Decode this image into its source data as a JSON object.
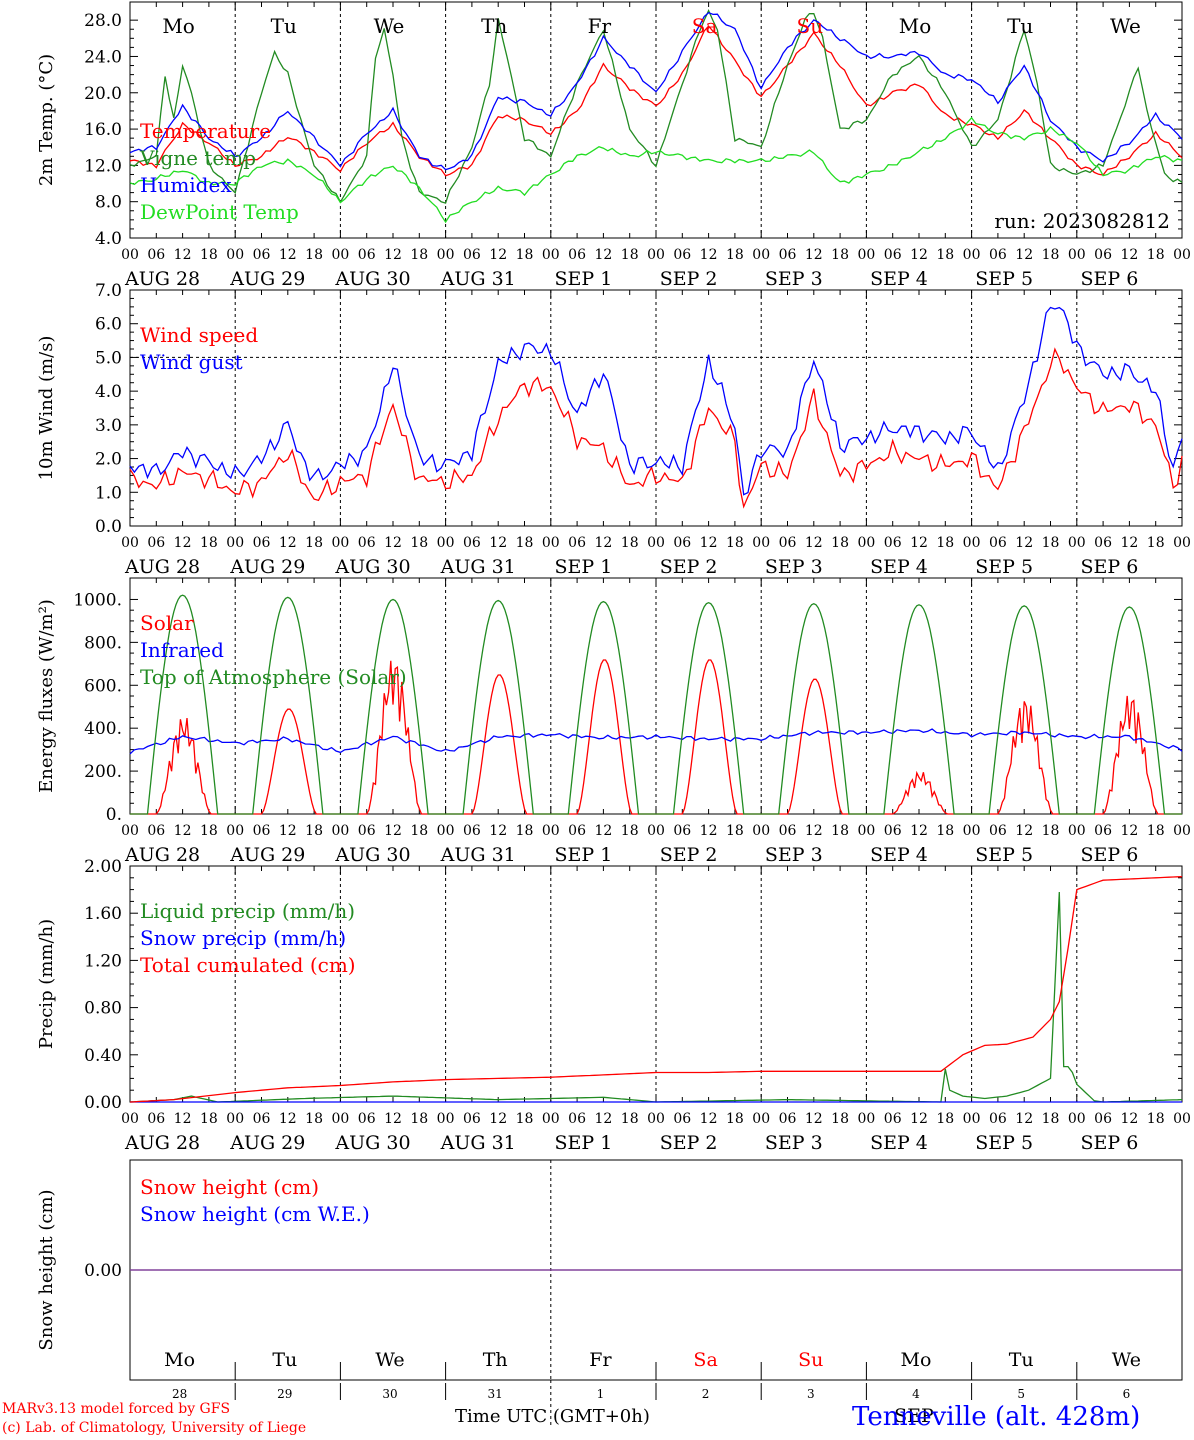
{
  "run_label": "run: 2023082812",
  "location": "Tenneville (alt. 428m)",
  "footer_line1": "MARv3.13 model forced by GFS",
  "footer_line2": "(c) Lab. of Climatology, University of Liege",
  "xlabel": "Time UTC (GMT+0h)",
  "hour_ticks": [
    "00",
    "06",
    "12",
    "18"
  ],
  "days": [
    {
      "dow": "Mo",
      "date": "AUG 28",
      "num": "28",
      "weekend": false
    },
    {
      "dow": "Tu",
      "date": "AUG 29",
      "num": "29",
      "weekend": false
    },
    {
      "dow": "We",
      "date": "AUG 30",
      "num": "30",
      "weekend": false
    },
    {
      "dow": "Th",
      "date": "AUG 31",
      "num": "31",
      "weekend": false
    },
    {
      "dow": "Fr",
      "date": "SEP  1",
      "num": "1",
      "weekend": false
    },
    {
      "dow": "Sa",
      "date": "SEP  2",
      "num": "2",
      "weekend": true
    },
    {
      "dow": "Su",
      "date": "SEP  3",
      "num": "3",
      "weekend": true
    },
    {
      "dow": "Mo",
      "date": "SEP  4",
      "num": "4",
      "weekend": false
    },
    {
      "dow": "Tu",
      "date": "SEP  5",
      "num": "5",
      "weekend": false
    },
    {
      "dow": "We",
      "date": "SEP  6",
      "num": "6",
      "weekend": false
    }
  ],
  "bottom_month": "SEP",
  "colors": {
    "red": "#ff0000",
    "green": "#228b22",
    "blue": "#0000ff",
    "light_green": "#22dd22",
    "purple": "#7d3c98"
  },
  "chart_data": [
    {
      "id": "temp",
      "type": "line",
      "ylabel": "2m Temp. (°C)",
      "ylim": [
        4,
        30
      ],
      "yticks": [
        "4.0",
        "8.0",
        "12.0",
        "16.0",
        "20.0",
        "24.0",
        "28.0"
      ],
      "ytick_values": [
        4,
        8,
        12,
        16,
        20,
        24,
        28
      ],
      "x_units": "hours since 2023-08-28 00 UTC",
      "series": [
        {
          "name": "Temperature",
          "color": "#ff0000",
          "x": [
            0,
            6,
            12,
            18,
            24,
            30,
            36,
            42,
            48,
            54,
            60,
            66,
            72,
            78,
            84,
            90,
            96,
            102,
            108,
            114,
            120,
            126,
            132,
            138,
            144,
            150,
            156,
            162,
            168,
            174,
            180,
            186,
            192,
            198,
            204,
            210,
            216,
            222,
            228,
            234,
            240
          ],
          "values": [
            12.5,
            12,
            16.5,
            14.5,
            12,
            13,
            15.2,
            13.5,
            11.5,
            14.5,
            16.5,
            13,
            11,
            12,
            17.5,
            17,
            15.5,
            18,
            23,
            20.5,
            18.5,
            22,
            27.5,
            23.5,
            19.5,
            23,
            26.5,
            23,
            18.5,
            20,
            21,
            17.5,
            16.5,
            15,
            18,
            15,
            12,
            11,
            13,
            15.5,
            13
          ]
        },
        {
          "name": "Vigne temp",
          "color": "#228b22",
          "x": [
            0,
            6,
            8,
            10,
            12,
            14,
            18,
            24,
            30,
            33,
            36,
            42,
            48,
            54,
            56,
            58,
            60,
            62,
            66,
            72,
            78,
            82,
            84,
            86,
            90,
            96,
            102,
            108,
            114,
            120,
            126,
            130,
            132,
            134,
            138,
            144,
            150,
            154,
            156,
            158,
            162,
            168,
            174,
            180,
            186,
            192,
            198,
            201,
            204,
            207,
            210,
            216,
            222,
            228,
            230,
            232,
            236,
            240
          ],
          "values": [
            12,
            13,
            22,
            17,
            23,
            20,
            12,
            9,
            20,
            24.5,
            22,
            12,
            8,
            13,
            24,
            27,
            22,
            15,
            9,
            8,
            14,
            21,
            28,
            24,
            15,
            13,
            21,
            27,
            16,
            12,
            21,
            27,
            29,
            27,
            15,
            14,
            23,
            28,
            29,
            26,
            16,
            17,
            22,
            24,
            20,
            14,
            17,
            22,
            27,
            21,
            12,
            11,
            12,
            20,
            23,
            18,
            11,
            10
          ]
        },
        {
          "name": "Humidex",
          "color": "#0000ff",
          "x": [
            0,
            6,
            12,
            18,
            24,
            30,
            36,
            42,
            48,
            54,
            60,
            66,
            72,
            78,
            84,
            90,
            96,
            102,
            108,
            114,
            120,
            126,
            132,
            138,
            144,
            150,
            156,
            162,
            168,
            174,
            180,
            186,
            192,
            198,
            204,
            210,
            216,
            222,
            228,
            234,
            240
          ],
          "values": [
            13.5,
            14,
            18.5,
            15,
            13,
            15,
            18,
            15,
            12,
            15.5,
            18,
            13,
            11.5,
            13,
            19.5,
            19,
            17.5,
            21,
            26,
            23,
            20,
            24.5,
            29,
            27,
            20.5,
            25,
            28,
            26,
            24,
            24,
            24.5,
            22,
            21.5,
            19,
            23,
            17,
            14,
            12.5,
            14.5,
            17.5,
            15
          ]
        },
        {
          "name": "DewPoint Temp",
          "color": "#22dd22",
          "x": [
            0,
            6,
            12,
            18,
            24,
            30,
            36,
            42,
            48,
            54,
            60,
            66,
            72,
            78,
            84,
            90,
            96,
            102,
            108,
            114,
            120,
            126,
            132,
            138,
            144,
            150,
            156,
            162,
            168,
            174,
            180,
            186,
            192,
            198,
            204,
            210,
            216,
            222,
            228,
            234,
            240
          ],
          "values": [
            10,
            10.5,
            11.5,
            10,
            10,
            12,
            12.5,
            11,
            8,
            10.5,
            12,
            9.5,
            6,
            8,
            9.5,
            9,
            11,
            13,
            14,
            13,
            13.5,
            13,
            12.5,
            12.5,
            12.5,
            13,
            13.5,
            10,
            11,
            12,
            13.5,
            15,
            17,
            15.5,
            15,
            16,
            14.5,
            11,
            11.5,
            13,
            12.5
          ]
        }
      ]
    },
    {
      "id": "wind",
      "type": "line",
      "ylabel": "10m Wind (m/s)",
      "ylim": [
        0,
        7
      ],
      "yticks": [
        "0.0",
        "1.0",
        "2.0",
        "3.0",
        "4.0",
        "5.0",
        "6.0",
        "7.0"
      ],
      "ytick_values": [
        0,
        1,
        2,
        3,
        4,
        5,
        6,
        7
      ],
      "reference_line": 5,
      "series": [
        {
          "name": "Wind speed",
          "color": "#ff0000",
          "x": [
            0,
            6,
            12,
            18,
            24,
            30,
            36,
            40,
            42,
            48,
            54,
            60,
            64,
            66,
            72,
            78,
            84,
            90,
            96,
            102,
            108,
            114,
            120,
            126,
            132,
            138,
            140,
            144,
            150,
            156,
            162,
            168,
            174,
            180,
            186,
            192,
            198,
            204,
            210,
            212,
            216,
            222,
            228,
            234,
            238,
            240
          ],
          "values": [
            1.4,
            1.2,
            1.6,
            1.4,
            1,
            1.3,
            2.2,
            1.2,
            0.8,
            1.3,
            1.5,
            3.6,
            2,
            1.4,
            1.3,
            1.5,
            3.2,
            4.2,
            4.1,
            2.6,
            2.3,
            1.2,
            1.5,
            1.3,
            3.5,
            2.5,
            0.5,
            1.8,
            1.5,
            3.8,
            1.5,
            1.8,
            2.2,
            2,
            1.8,
            2,
            1.1,
            2.8,
            4.8,
            5,
            4.1,
            3.4,
            3.6,
            3,
            1.2,
            1.9
          ]
        },
        {
          "name": "Wind gust",
          "color": "#0000ff",
          "x": [
            0,
            6,
            12,
            18,
            24,
            30,
            36,
            40,
            42,
            48,
            54,
            60,
            64,
            66,
            72,
            78,
            84,
            90,
            96,
            102,
            108,
            114,
            120,
            126,
            132,
            138,
            140,
            144,
            150,
            156,
            162,
            168,
            174,
            180,
            186,
            192,
            198,
            204,
            210,
            212,
            216,
            222,
            228,
            234,
            238,
            240
          ],
          "values": [
            1.8,
            1.6,
            2.2,
            1.9,
            1.5,
            2,
            3,
            1.8,
            1.4,
            1.8,
            2.2,
            4.8,
            3,
            2,
            1.8,
            2.2,
            4.8,
            5.3,
            5.2,
            3.3,
            4.6,
            1.8,
            1.9,
            1.8,
            4.9,
            3,
            0.8,
            2.3,
            2.2,
            5,
            2.4,
            2.6,
            2.9,
            2.8,
            2.6,
            2.8,
            1.6,
            3.8,
            6.5,
            6.6,
            5.3,
            4.5,
            4.6,
            4,
            1.7,
            2.5
          ]
        }
      ]
    },
    {
      "id": "energy",
      "type": "line",
      "ylabel": "Energy fluxes (W/m²)",
      "ylim": [
        0,
        1100
      ],
      "yticks": [
        "0.",
        "200.",
        "400.",
        "600.",
        "800.",
        "1000."
      ],
      "ytick_values": [
        0,
        200,
        400,
        600,
        800,
        1000
      ],
      "series": [
        {
          "name": "Solar",
          "color": "#ff0000",
          "daily_peaks": [
            460,
            490,
            740,
            650,
            720,
            720,
            630,
            200,
            550,
            570
          ]
        },
        {
          "name": "Infrared",
          "color": "#0000ff",
          "x": [
            0,
            12,
            24,
            36,
            48,
            60,
            72,
            84,
            96,
            108,
            120,
            132,
            144,
            156,
            168,
            180,
            192,
            204,
            216,
            228,
            240
          ],
          "values": [
            290,
            360,
            330,
            350,
            290,
            360,
            290,
            360,
            370,
            355,
            360,
            350,
            350,
            380,
            380,
            390,
            370,
            380,
            360,
            360,
            300
          ]
        },
        {
          "name": "Top of Atmosphere (Solar)",
          "color": "#228b22",
          "daily_peaks": [
            1020,
            1010,
            1000,
            995,
            990,
            985,
            980,
            975,
            970,
            965
          ]
        }
      ]
    },
    {
      "id": "precip",
      "type": "line",
      "ylabel": "Precip (mm/h)",
      "ylim": [
        0,
        2
      ],
      "yticks": [
        "0.00",
        "0.40",
        "0.80",
        "1.20",
        "1.60",
        "2.00"
      ],
      "ytick_values": [
        0,
        0.4,
        0.8,
        1.2,
        1.6,
        2.0
      ],
      "series": [
        {
          "name": "Liquid precip (mm/h)",
          "color": "#228b22",
          "x": [
            0,
            10,
            14,
            20,
            40,
            60,
            84,
            108,
            120,
            150,
            185,
            186,
            187,
            190,
            195,
            200,
            205,
            210,
            212,
            213,
            214,
            215,
            216,
            220,
            222,
            240
          ],
          "values": [
            0,
            0.02,
            0.05,
            0,
            0.03,
            0.05,
            0.02,
            0.04,
            0,
            0.02,
            0,
            0.28,
            0.1,
            0.05,
            0.03,
            0.05,
            0.1,
            0.2,
            1.78,
            0.3,
            0.3,
            0.25,
            0.15,
            0.01,
            0,
            0.02
          ]
        },
        {
          "name": "Snow precip (mm/h)",
          "color": "#0000ff",
          "x": [
            0,
            240
          ],
          "values": [
            0,
            0
          ]
        },
        {
          "name": "Total cumulated (cm)",
          "color": "#ff0000",
          "x": [
            0,
            10,
            24,
            36,
            48,
            60,
            72,
            84,
            96,
            108,
            120,
            132,
            144,
            156,
            168,
            180,
            185,
            190,
            195,
            200,
            206,
            210,
            212,
            214,
            216,
            222,
            240
          ],
          "values": [
            0,
            0.02,
            0.08,
            0.12,
            0.14,
            0.17,
            0.19,
            0.2,
            0.21,
            0.23,
            0.25,
            0.25,
            0.26,
            0.26,
            0.26,
            0.26,
            0.26,
            0.4,
            0.48,
            0.49,
            0.55,
            0.7,
            0.85,
            1.3,
            1.8,
            1.88,
            1.91
          ]
        }
      ]
    },
    {
      "id": "snow",
      "type": "line",
      "ylabel": "Snow height (cm)",
      "yticks": [
        "0.00"
      ],
      "series": [
        {
          "name": "Snow height (cm)",
          "color": "#ff0000",
          "x": [
            0,
            240
          ],
          "values": [
            0,
            0
          ]
        },
        {
          "name": "Snow height (cm W.E.)",
          "color": "#0000ff",
          "x": [
            0,
            240
          ],
          "values": [
            0,
            0
          ]
        }
      ]
    }
  ]
}
